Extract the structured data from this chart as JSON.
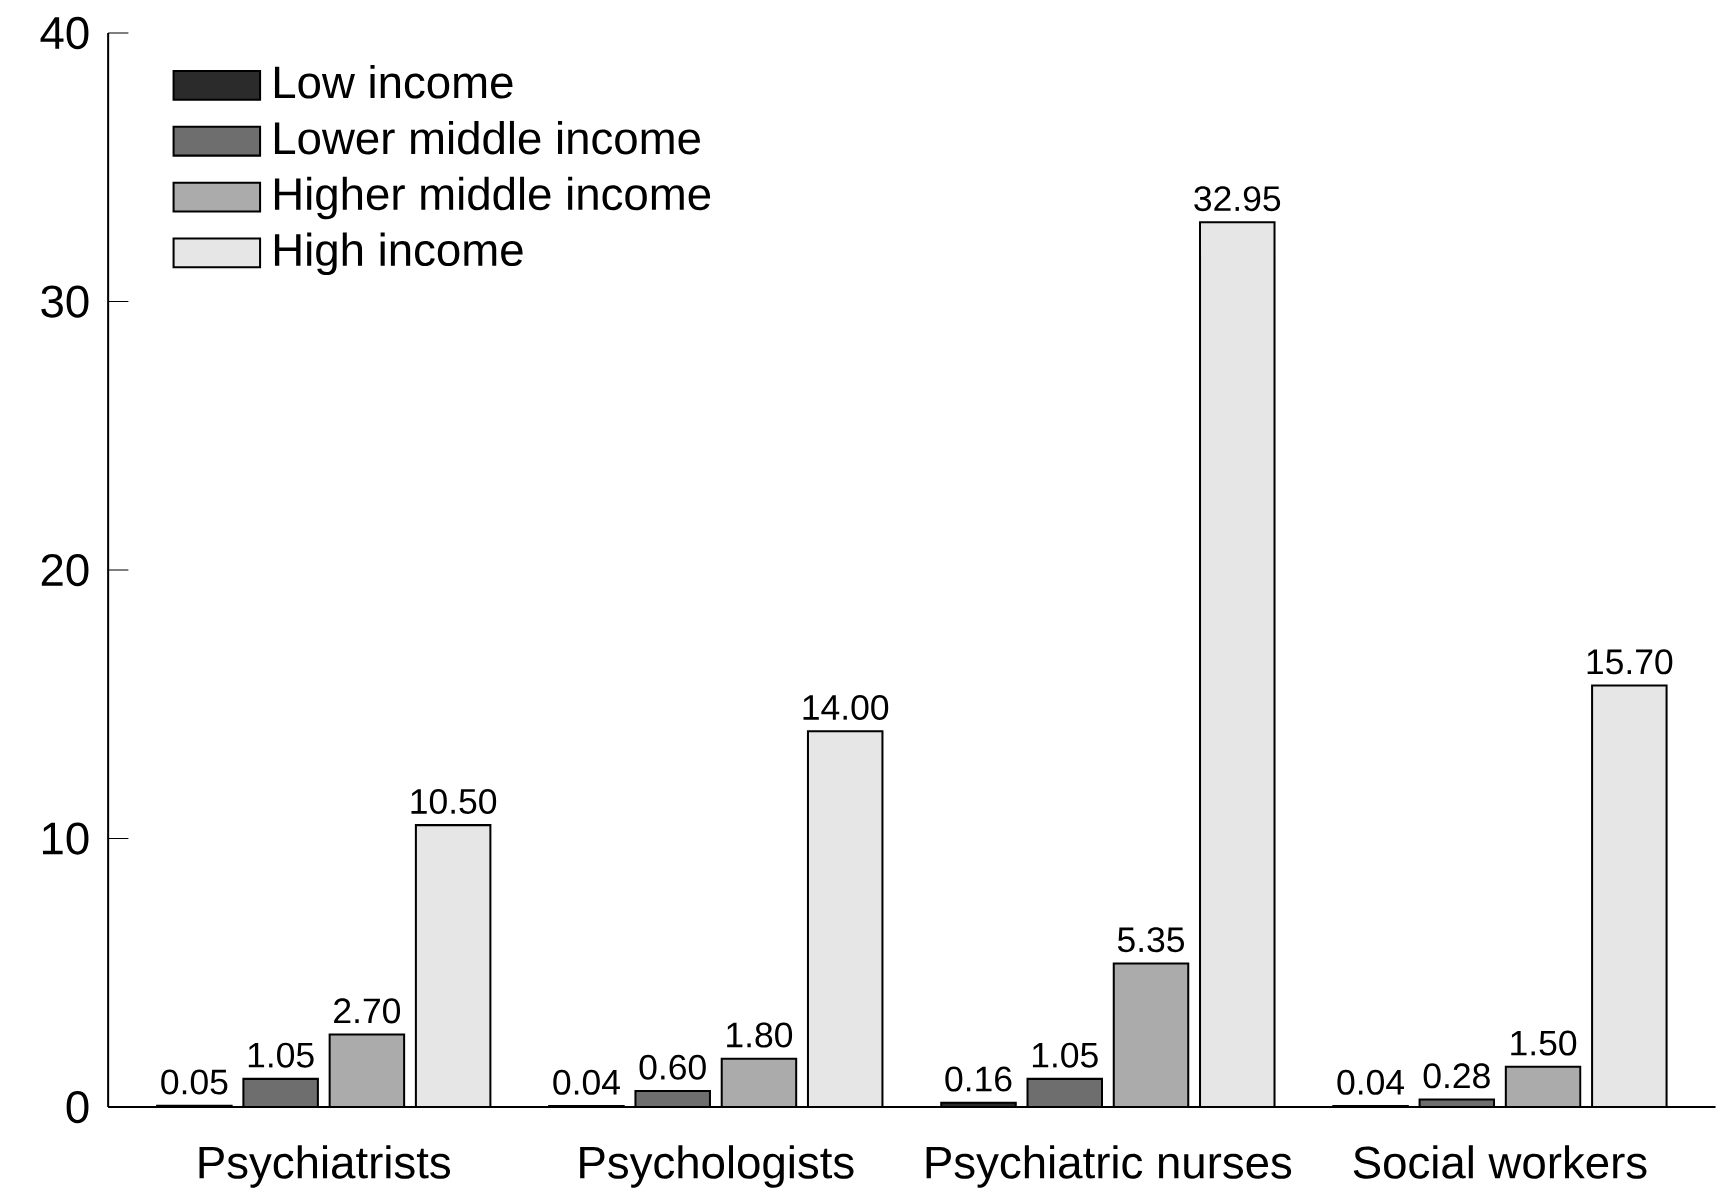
{
  "chart_data": {
    "type": "bar",
    "categories": [
      "Psychiatrists",
      "Psychologists",
      "Psychiatric nurses",
      "Social workers"
    ],
    "series": [
      {
        "name": "Low income",
        "color": "#2b2b2b",
        "values": [
          0.05,
          0.04,
          0.16,
          0.04
        ],
        "value_labels": [
          "0.05",
          "0.04",
          "0.16",
          "0.04"
        ]
      },
      {
        "name": "Lower middle income",
        "color": "#6e6e6e",
        "values": [
          1.05,
          0.6,
          1.05,
          0.28
        ],
        "value_labels": [
          "1.05",
          "0.60",
          "1.05",
          "0.28"
        ]
      },
      {
        "name": "Higher middle income",
        "color": "#ababab",
        "values": [
          2.7,
          1.8,
          5.35,
          1.5
        ],
        "value_labels": [
          "2.70",
          "1.80",
          "5.35",
          "1.50"
        ]
      },
      {
        "name": "High income",
        "color": "#e6e6e6",
        "values": [
          10.5,
          14.0,
          32.95,
          15.7
        ],
        "value_labels": [
          "10.50",
          "14.00",
          "32.95",
          "15.70"
        ]
      }
    ],
    "ylim": [
      0,
      40
    ],
    "yticks": [
      0,
      10,
      20,
      30,
      40
    ],
    "grid": false,
    "legend": "top left"
  }
}
